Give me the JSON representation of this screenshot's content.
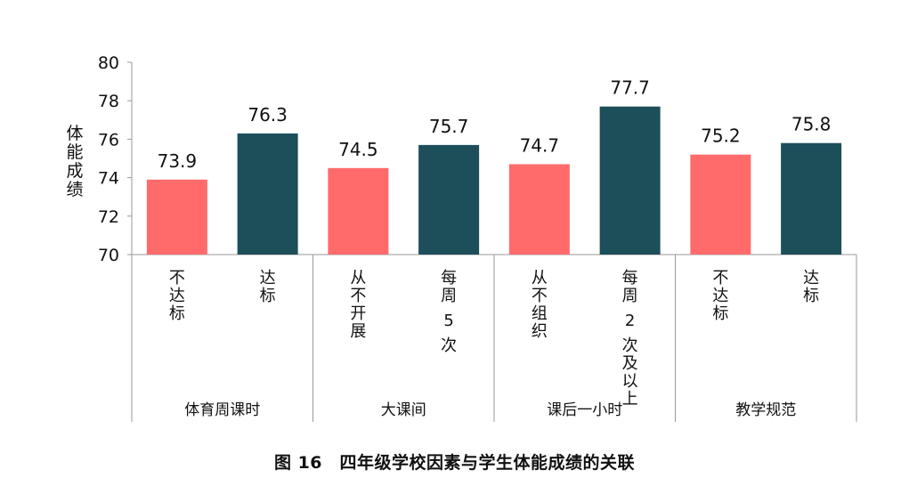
{
  "chart_data": {
    "type": "bar",
    "ylabel": "体能成绩",
    "ylim": [
      70,
      80
    ],
    "yticks": [
      "70",
      "72",
      "74",
      "76",
      "78",
      "80"
    ],
    "colors": {
      "not_met": "#ff6b6b",
      "met": "#1c4f5a"
    },
    "groups": [
      {
        "name": "体育周课时",
        "categories": [
          "不达标",
          "达标"
        ],
        "values": [
          73.9,
          76.3
        ]
      },
      {
        "name": "大课间",
        "categories": [
          "从不开展",
          "每周 5 次"
        ],
        "values": [
          74.5,
          75.7
        ]
      },
      {
        "name": "课后一小时",
        "categories": [
          "从不组织",
          "每周 2 次及以上"
        ],
        "values": [
          74.7,
          77.7
        ]
      },
      {
        "name": "教学规范",
        "categories": [
          "不达标",
          "达标"
        ],
        "values": [
          75.2,
          75.8
        ]
      }
    ],
    "data_labels": [
      "73.9",
      "76.3",
      "74.5",
      "75.7",
      "74.7",
      "77.7",
      "75.2",
      "75.8"
    ]
  },
  "caption": "图 16　四年级学校因素与学生体能成绩的关联"
}
